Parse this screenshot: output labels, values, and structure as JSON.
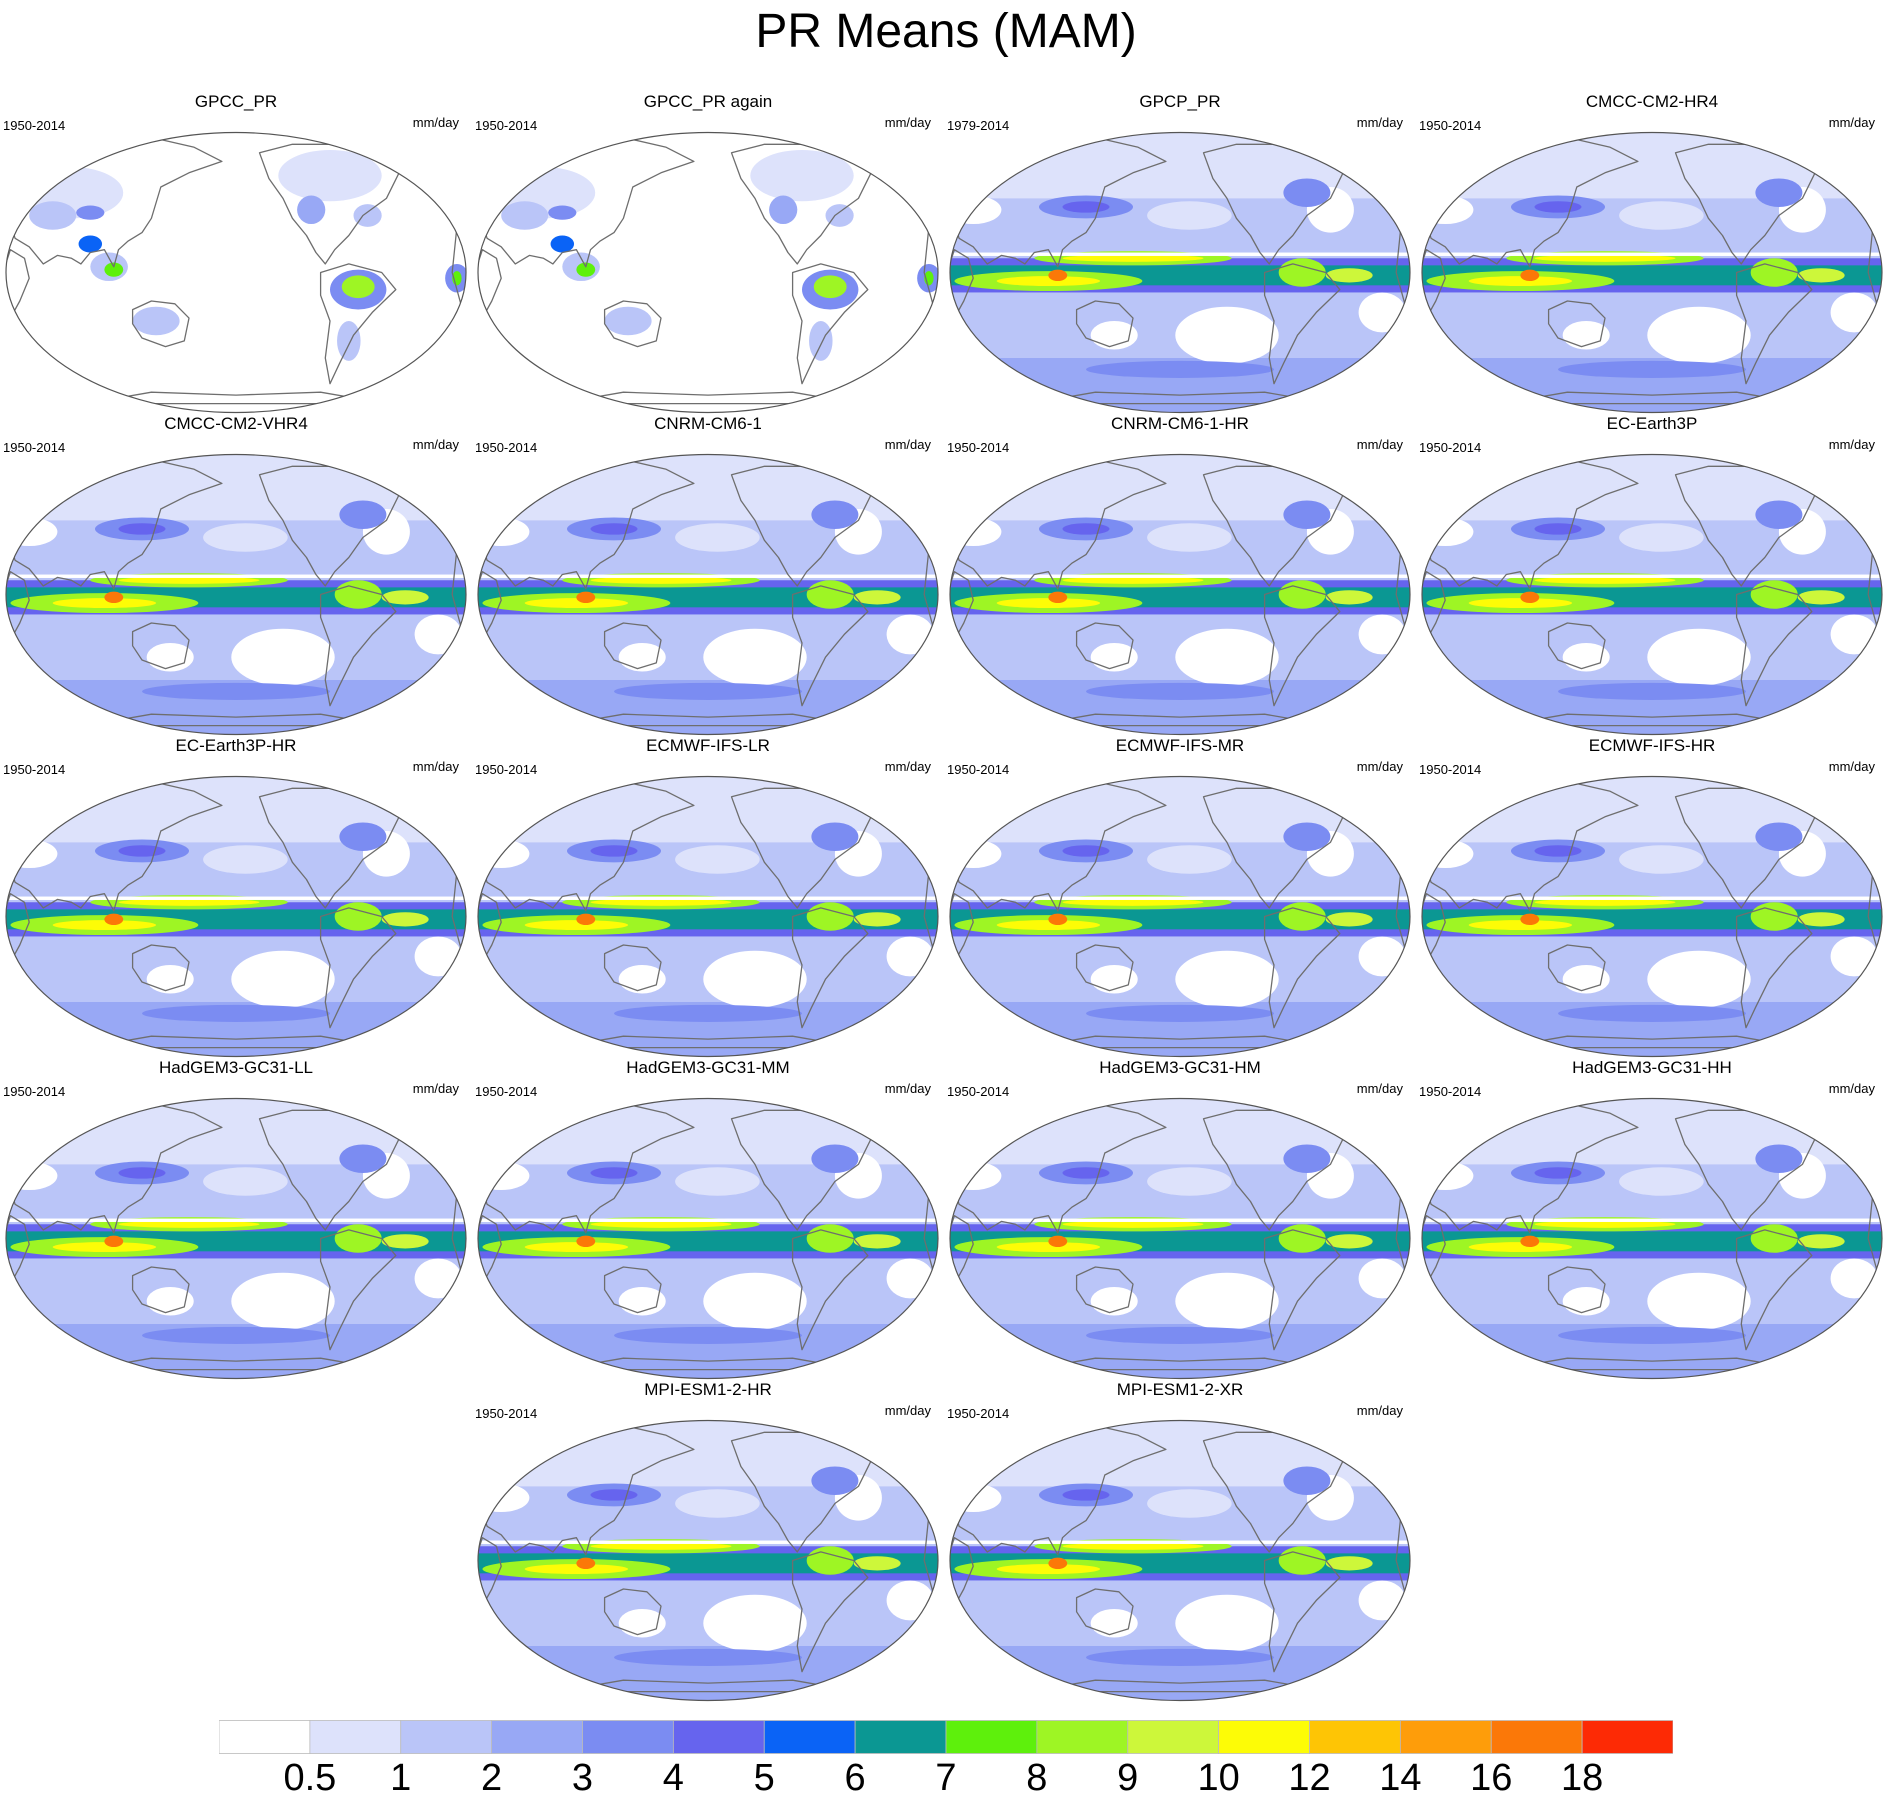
{
  "title": "PR Means (MAM)",
  "chart_data": {
    "type": "heatmap",
    "projection": "Robinson (Pacific-centred)",
    "variable_title": "PR Means (MAM)",
    "units": "mm/day",
    "panels": [
      {
        "name": "GPCC_PR",
        "period": "1950-2014",
        "units": "mm/day",
        "land_only": true
      },
      {
        "name": "GPCC_PR again",
        "period": "1950-2014",
        "units": "mm/day",
        "land_only": true
      },
      {
        "name": "GPCP_PR",
        "period": "1979-2014",
        "units": "mm/day",
        "land_only": false
      },
      {
        "name": "CMCC-CM2-HR4",
        "period": "1950-2014",
        "units": "mm/day",
        "land_only": false
      },
      {
        "name": "CMCC-CM2-VHR4",
        "period": "1950-2014",
        "units": "mm/day",
        "land_only": false
      },
      {
        "name": "CNRM-CM6-1",
        "period": "1950-2014",
        "units": "mm/day",
        "land_only": false
      },
      {
        "name": "CNRM-CM6-1-HR",
        "period": "1950-2014",
        "units": "mm/day",
        "land_only": false
      },
      {
        "name": "EC-Earth3P",
        "period": "1950-2014",
        "units": "mm/day",
        "land_only": false
      },
      {
        "name": "EC-Earth3P-HR",
        "period": "1950-2014",
        "units": "mm/day",
        "land_only": false
      },
      {
        "name": "ECMWF-IFS-LR",
        "period": "1950-2014",
        "units": "mm/day",
        "land_only": false
      },
      {
        "name": "ECMWF-IFS-MR",
        "period": "1950-2014",
        "units": "mm/day",
        "land_only": false
      },
      {
        "name": "ECMWF-IFS-HR",
        "period": "1950-2014",
        "units": "mm/day",
        "land_only": false
      },
      {
        "name": "HadGEM3-GC31-LL",
        "period": "1950-2014",
        "units": "mm/day",
        "land_only": false
      },
      {
        "name": "HadGEM3-GC31-MM",
        "period": "1950-2014",
        "units": "mm/day",
        "land_only": false
      },
      {
        "name": "HadGEM3-GC31-HM",
        "period": "1950-2014",
        "units": "mm/day",
        "land_only": false
      },
      {
        "name": "HadGEM3-GC31-HH",
        "period": "1950-2014",
        "units": "mm/day",
        "land_only": false
      },
      {
        "name": "MPI-ESM1-2-HR",
        "period": "1950-2014",
        "units": "mm/day",
        "land_only": false
      },
      {
        "name": "MPI-ESM1-2-XR",
        "period": "1950-2014",
        "units": "mm/day",
        "land_only": false
      }
    ],
    "colorbar": {
      "levels": [
        "0.5",
        "1",
        "2",
        "3",
        "4",
        "5",
        "6",
        "7",
        "8",
        "9",
        "10",
        "12",
        "14",
        "16",
        "18"
      ],
      "colors": [
        "#ffffff",
        "#dde2fb",
        "#bac5f8",
        "#98a8f5",
        "#7b8cf2",
        "#6664ee",
        "#0a63f6",
        "#0b9793",
        "#5ef00c",
        "#9ef524",
        "#cdf73a",
        "#fdfc06",
        "#fec505",
        "#fe9d0a",
        "#fb7808",
        "#fd2a05"
      ]
    }
  }
}
